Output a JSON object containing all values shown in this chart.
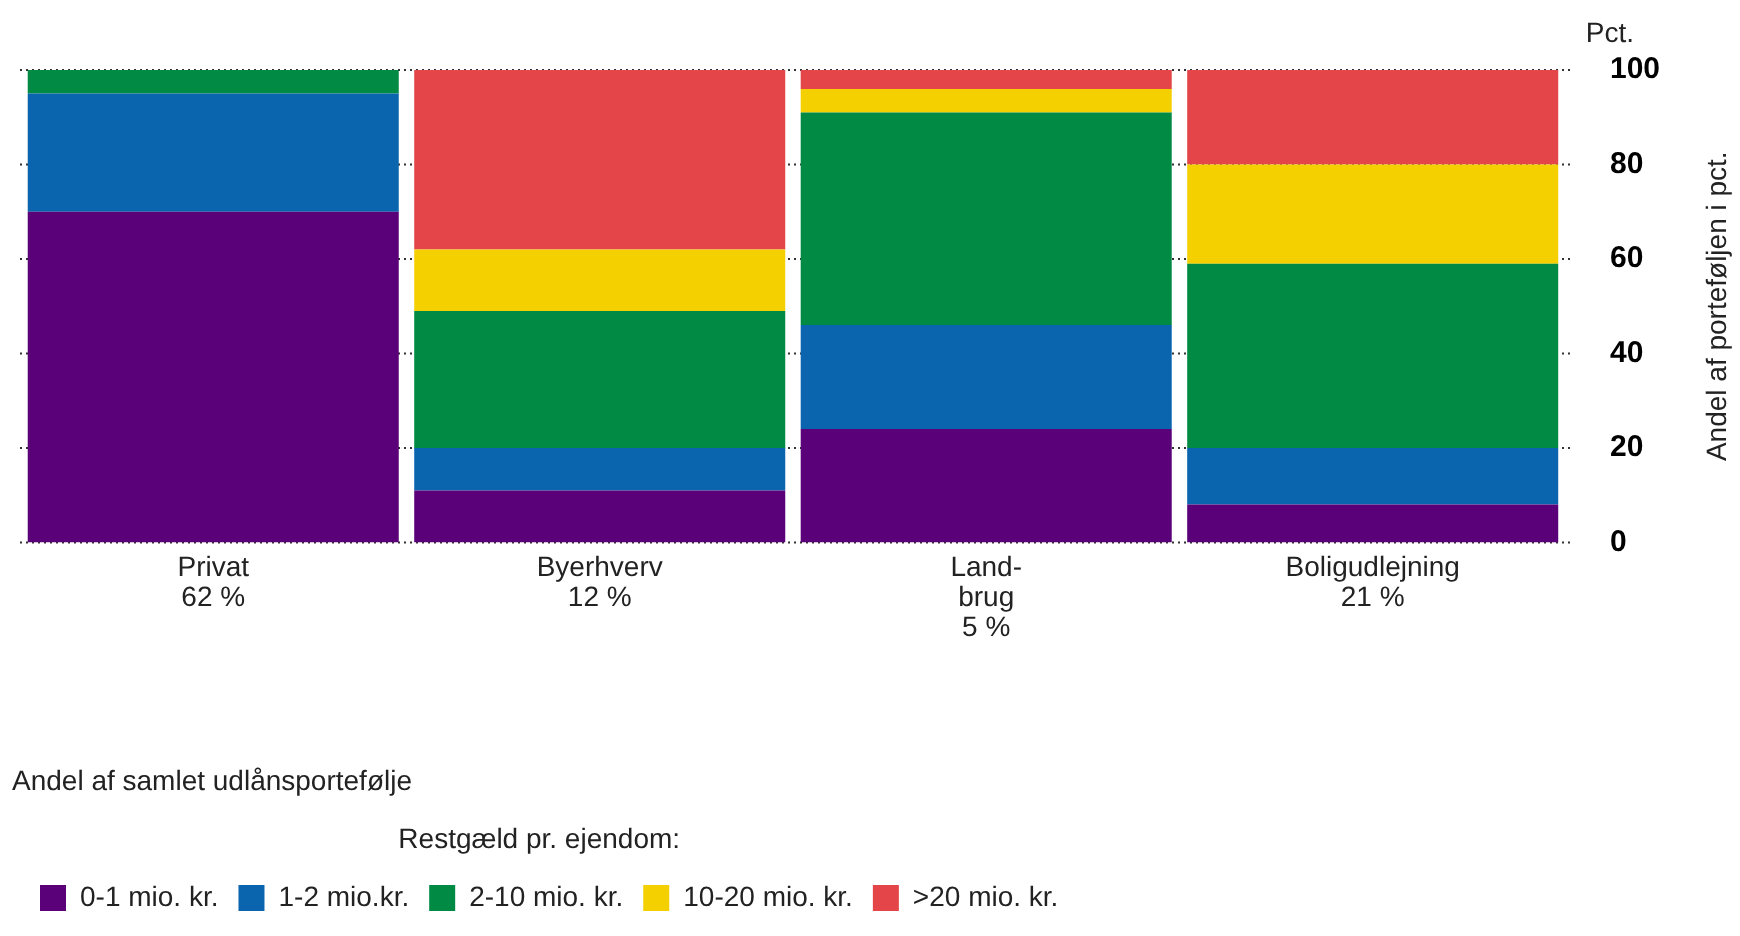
{
  "chart_data": {
    "type": "bar",
    "stacked": true,
    "categories": [
      "Privat\n62 %",
      "Byerhverv\n12 %",
      "Land-\nbrug\n5 %",
      "Boligudlejning\n21 %"
    ],
    "series": [
      {
        "name": "0-1 mio. kr.",
        "color": "#5a0078",
        "values": [
          70,
          11,
          24,
          8
        ]
      },
      {
        "name": "1-2 mio.kr.",
        "color": "#0a64ae",
        "values": [
          25,
          9,
          22,
          12
        ]
      },
      {
        "name": "2-10 mio. kr.",
        "color": "#008a44",
        "values": [
          5,
          29,
          45,
          39
        ]
      },
      {
        "name": "10-20 mio. kr.",
        "color": "#f5d000",
        "values": [
          0,
          13,
          5,
          21
        ]
      },
      {
        "name": ">20 mio. kr.",
        "color": "#e44548",
        "values": [
          0,
          38,
          4,
          20
        ]
      }
    ],
    "ylabel": "Andel af porteføljen i pct.",
    "annotations": [
      "Pct.",
      "Andel af samlet udlånsportefølje"
    ],
    "legend_title": "Restgæld pr. ejendom:",
    "ylim": [
      0,
      100
    ],
    "yticks": [
      0,
      20,
      40,
      60,
      80,
      100
    ],
    "tick_labels": "y",
    "grid": "y",
    "line_style": "dotted",
    "legend": "bottom"
  }
}
